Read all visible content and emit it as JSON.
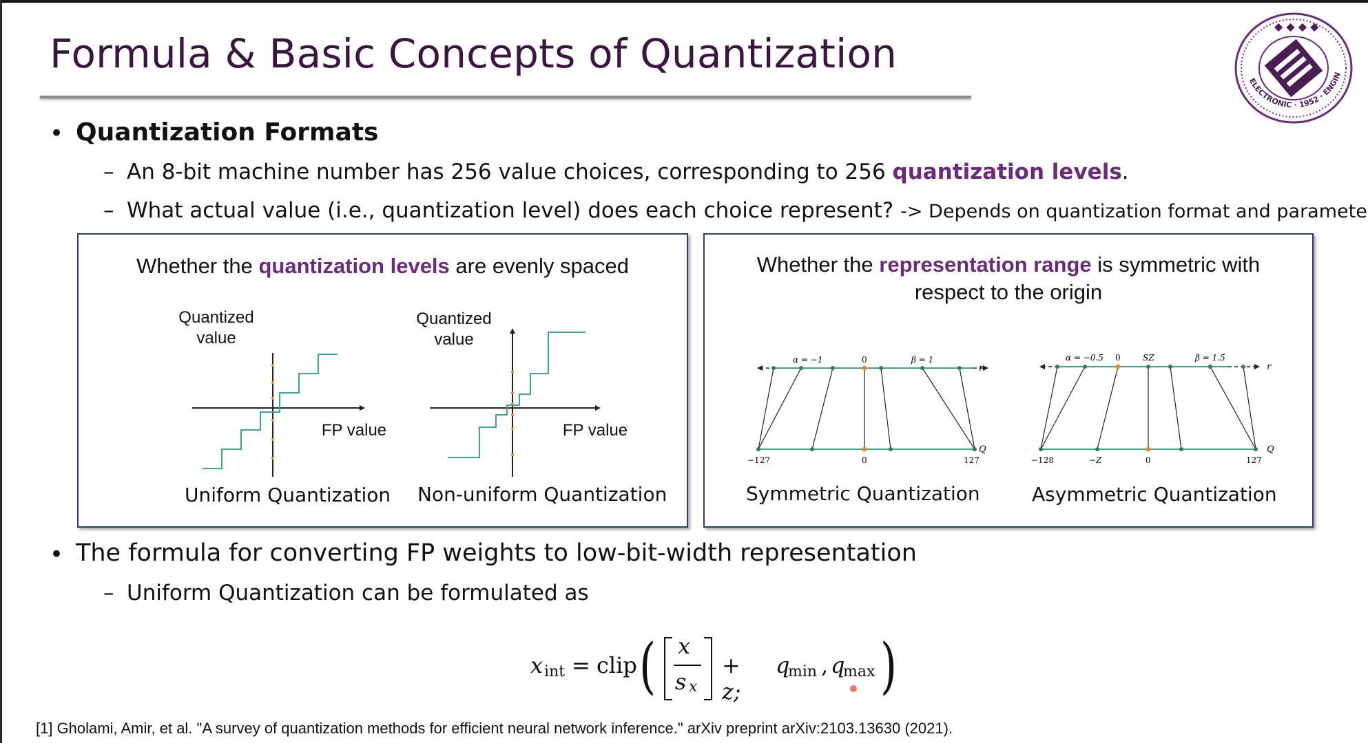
{
  "slide": {
    "title": "Formula & Basic Concepts of Quantization",
    "logo": {
      "icon": "university-seal-icon",
      "text": "ELECTRONIC · 1952 · ENGINEERING"
    },
    "bullet1": {
      "label": "Quantization Formats",
      "sub1": {
        "text": "An 8-bit machine number has 256 value choices, corresponding to 256 ",
        "highlight": "quantization levels",
        "tail": "."
      },
      "sub2": {
        "text": "What actual value (i.e., quantization level) does each choice represent? ",
        "small": "-> Depends on quantization format and parameters."
      }
    },
    "panel_left": {
      "heading_pre": "Whether the ",
      "heading_hl": "quantization levels",
      "heading_post": " are evenly spaced",
      "uniform": {
        "ylabel": "Quantized value",
        "xlabel": "FP value",
        "caption": "Uniform Quantization"
      },
      "nonuniform": {
        "ylabel": "Quantized value",
        "xlabel": "FP value",
        "caption": "Non-uniform Quantization"
      }
    },
    "panel_right": {
      "heading_pre": "Whether the ",
      "heading_hl": "representation range",
      "heading_post": " is symmetric with",
      "heading_line2": "respect to the origin",
      "symmetric": {
        "caption": "Symmetric Quantization",
        "top_labels": [
          "α = −1",
          "0",
          "β = 1",
          "r"
        ],
        "bottom_labels": [
          "−127",
          "0",
          "127",
          "Q"
        ]
      },
      "asymmetric": {
        "caption": "Asymmetric Quantization",
        "top_labels": [
          "α = −0.5",
          "0",
          "SZ",
          "β = 1.5",
          "r"
        ],
        "bottom_labels": [
          "−128",
          "−Z",
          "0",
          "127",
          "Q"
        ]
      }
    },
    "bullet2": {
      "label": "The formula for converting FP weights to low-bit-width representation",
      "sub1": "Uniform Quantization can be formulated as"
    },
    "formula": {
      "lhs": "x",
      "lhs_sub": "int",
      "eq": "=",
      "fn": "clip",
      "num": "x",
      "den": "s",
      "den_sub": "x",
      "plus_z": "+ z;",
      "qmin": "q",
      "qmin_sub": "min",
      "qmax": "q",
      "qmax_sub": "max"
    },
    "citation": "[1] Gholami, Amir, et al. \"A survey of quantization methods for efficient neural network inference.\" arXiv preprint arXiv:2103.13630 (2021).",
    "colors": {
      "title": "#3a1540",
      "highlight": "#6a2c7a",
      "panel_border": "#2e3b6b",
      "step_line": "#3aa58a",
      "origin_dot": "#e88a2a"
    }
  }
}
